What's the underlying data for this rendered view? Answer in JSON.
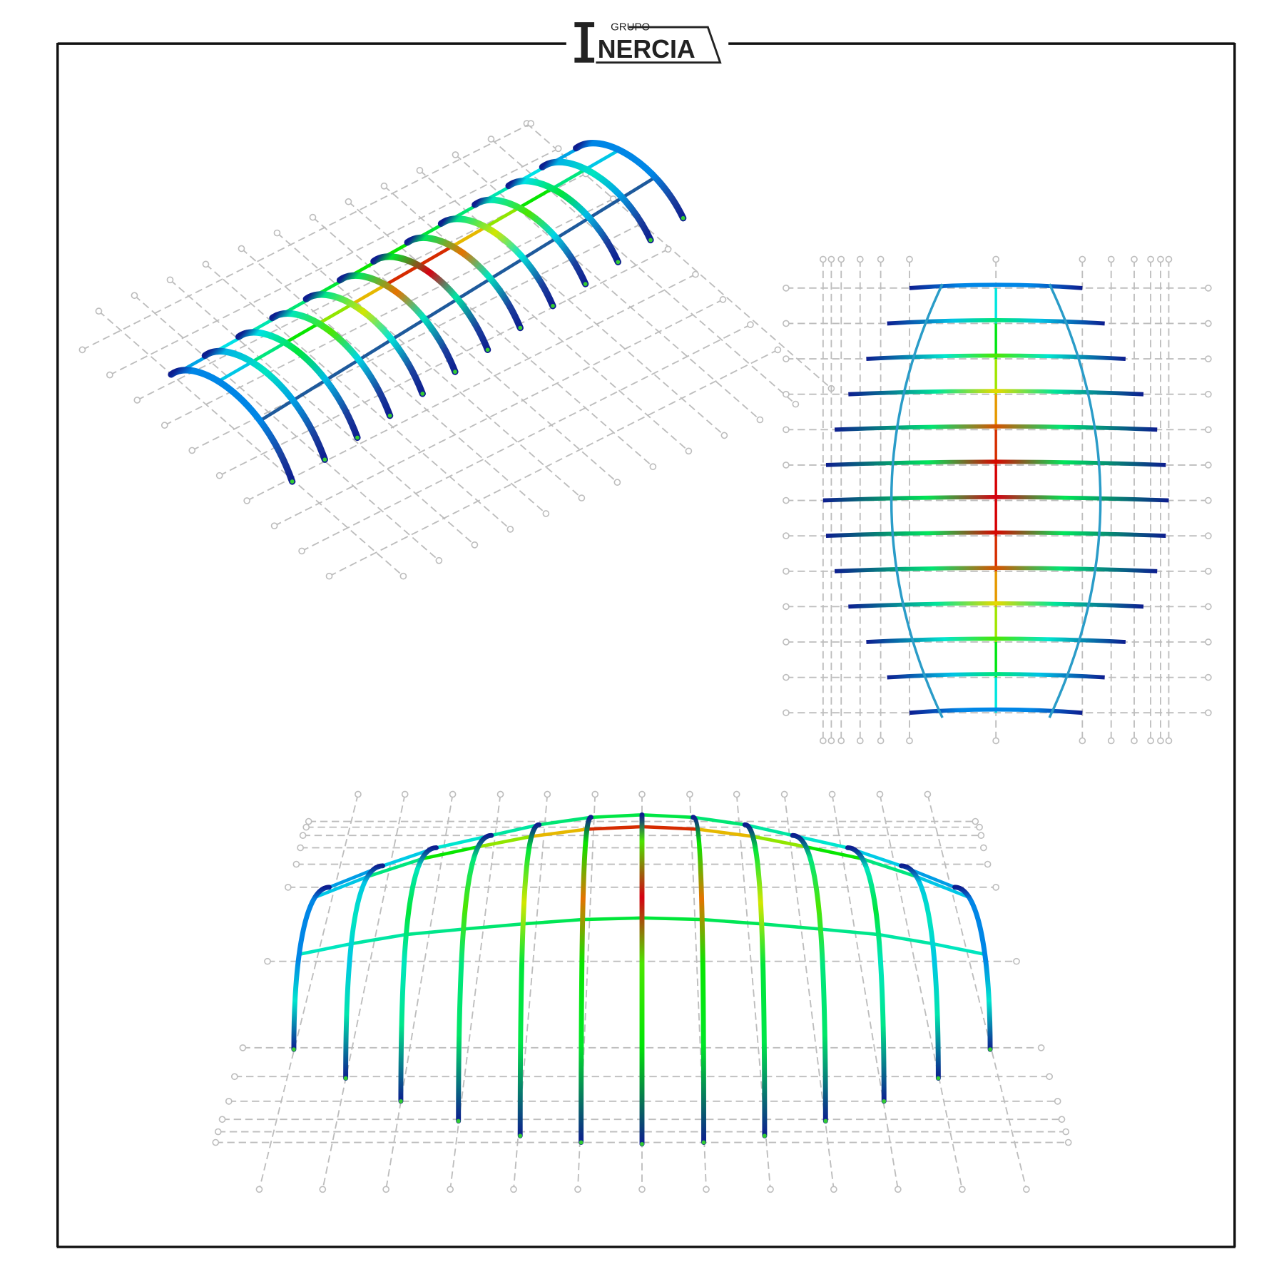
{
  "logo": {
    "top": "GRUPO",
    "name": "NERCIA"
  }
}
